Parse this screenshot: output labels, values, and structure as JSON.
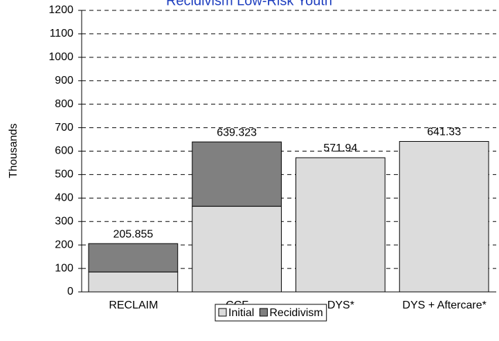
{
  "chart_data": {
    "type": "stacked_bar",
    "title": "Recidivism Low-Risk Youth",
    "ylabel": "Thousands",
    "categories": [
      "RECLAIM",
      "CCF",
      "DYS*",
      "DYS + Aftercare*"
    ],
    "series": [
      {
        "name": "Initial",
        "color": "#dcdcdc",
        "values": [
          85,
          365,
          571.94,
          641.33
        ]
      },
      {
        "name": "Recidivism",
        "color": "#808080",
        "values": [
          120.855,
          274.323,
          0,
          0
        ]
      }
    ],
    "totals": [
      205.855,
      639.323,
      571.94,
      641.33
    ],
    "ylim": [
      0,
      1200
    ],
    "yticks": [
      0,
      100,
      200,
      300,
      400,
      500,
      600,
      700,
      800,
      900,
      1000,
      1100,
      1200
    ],
    "grid": true,
    "legend": "bottom"
  }
}
